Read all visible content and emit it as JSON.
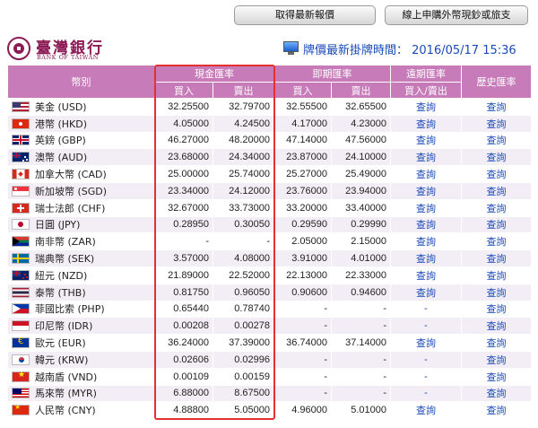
{
  "buttons": {
    "latest_rates": "取得最新報價",
    "online_purchase": "線上申購外幣現鈔或旅支"
  },
  "logo": {
    "name_cn": "臺灣銀行",
    "name_en": "BANK OF TAIWAN"
  },
  "update_time": "牌價最新掛牌時間： 2016/05/17 15:36",
  "table": {
    "headers": {
      "currency": "幣別",
      "cash": "現金匯率",
      "spot": "即期匯率",
      "forward": "遠期匯率",
      "history": "歷史匯率",
      "buy": "買入",
      "sell": "賣出",
      "buy_sell": "買入/賣出"
    },
    "query_label": "查詢",
    "rows": [
      {
        "flag": "us-flag-icon",
        "name": "美金 (USD)",
        "cash_buy": "32.25500",
        "cash_sell": "32.79700",
        "spot_buy": "32.55500",
        "spot_sell": "32.65500",
        "forward": "查詢",
        "history": "查詢"
      },
      {
        "flag": "hk-flag-icon",
        "name": "港幣 (HKD)",
        "cash_buy": "4.05000",
        "cash_sell": "4.24500",
        "spot_buy": "4.17000",
        "spot_sell": "4.23000",
        "forward": "查詢",
        "history": "查詢"
      },
      {
        "flag": "uk-flag-icon",
        "name": "英鎊 (GBP)",
        "cash_buy": "46.27000",
        "cash_sell": "48.20000",
        "spot_buy": "47.14000",
        "spot_sell": "47.56000",
        "forward": "查詢",
        "history": "查詢"
      },
      {
        "flag": "au-flag-icon",
        "name": "澳幣 (AUD)",
        "cash_buy": "23.68000",
        "cash_sell": "24.34000",
        "spot_buy": "23.87000",
        "spot_sell": "24.10000",
        "forward": "查詢",
        "history": "查詢"
      },
      {
        "flag": "ca-flag-icon",
        "name": "加拿大幣 (CAD)",
        "cash_buy": "25.00000",
        "cash_sell": "25.74000",
        "spot_buy": "25.27000",
        "spot_sell": "25.49000",
        "forward": "查詢",
        "history": "查詢"
      },
      {
        "flag": "sg-flag-icon",
        "name": "新加坡幣 (SGD)",
        "cash_buy": "23.34000",
        "cash_sell": "24.12000",
        "spot_buy": "23.76000",
        "spot_sell": "23.94000",
        "forward": "查詢",
        "history": "查詢"
      },
      {
        "flag": "ch-flag-icon",
        "name": "瑞士法郎 (CHF)",
        "cash_buy": "32.67000",
        "cash_sell": "33.73000",
        "spot_buy": "33.20000",
        "spot_sell": "33.40000",
        "forward": "查詢",
        "history": "查詢"
      },
      {
        "flag": "jp-flag-icon",
        "name": "日圓 (JPY)",
        "cash_buy": "0.28950",
        "cash_sell": "0.30050",
        "spot_buy": "0.29590",
        "spot_sell": "0.29990",
        "forward": "查詢",
        "history": "查詢"
      },
      {
        "flag": "za-flag-icon",
        "name": "南非幣 (ZAR)",
        "cash_buy": "-",
        "cash_sell": "-",
        "spot_buy": "2.05000",
        "spot_sell": "2.15000",
        "forward": "查詢",
        "history": "查詢"
      },
      {
        "flag": "se-flag-icon",
        "name": "瑞典幣 (SEK)",
        "cash_buy": "3.57000",
        "cash_sell": "4.08000",
        "spot_buy": "3.91000",
        "spot_sell": "4.01000",
        "forward": "查詢",
        "history": "查詢"
      },
      {
        "flag": "nz-flag-icon",
        "name": "紐元 (NZD)",
        "cash_buy": "21.89000",
        "cash_sell": "22.52000",
        "spot_buy": "22.13000",
        "spot_sell": "22.33000",
        "forward": "查詢",
        "history": "查詢"
      },
      {
        "flag": "th-flag-icon",
        "name": "泰幣 (THB)",
        "cash_buy": "0.81750",
        "cash_sell": "0.96050",
        "spot_buy": "0.90600",
        "spot_sell": "0.94600",
        "forward": "查詢",
        "history": "查詢"
      },
      {
        "flag": "ph-flag-icon",
        "name": "菲國比索 (PHP)",
        "cash_buy": "0.65440",
        "cash_sell": "0.78740",
        "spot_buy": "-",
        "spot_sell": "-",
        "forward": "-",
        "history": "查詢"
      },
      {
        "flag": "id-flag-icon",
        "name": "印尼幣 (IDR)",
        "cash_buy": "0.00208",
        "cash_sell": "0.00278",
        "spot_buy": "-",
        "spot_sell": "-",
        "forward": "-",
        "history": "查詢"
      },
      {
        "flag": "eu-flag-icon",
        "name": "歐元 (EUR)",
        "cash_buy": "36.24000",
        "cash_sell": "37.39000",
        "spot_buy": "36.74000",
        "spot_sell": "37.14000",
        "forward": "查詢",
        "history": "查詢"
      },
      {
        "flag": "kr-flag-icon",
        "name": "韓元 (KRW)",
        "cash_buy": "0.02606",
        "cash_sell": "0.02996",
        "spot_buy": "-",
        "spot_sell": "-",
        "forward": "-",
        "history": "查詢"
      },
      {
        "flag": "vn-flag-icon",
        "name": "越南盾 (VND)",
        "cash_buy": "0.00109",
        "cash_sell": "0.00159",
        "spot_buy": "-",
        "spot_sell": "-",
        "forward": "-",
        "history": "查詢"
      },
      {
        "flag": "my-flag-icon",
        "name": "馬來幣 (MYR)",
        "cash_buy": "6.88000",
        "cash_sell": "8.67500",
        "spot_buy": "-",
        "spot_sell": "-",
        "forward": "-",
        "history": "查詢"
      },
      {
        "flag": "cn-flag-icon",
        "name": "人民幣 (CNY)",
        "cash_buy": "4.88800",
        "cash_sell": "5.05000",
        "spot_buy": "4.96000",
        "spot_sell": "5.01000",
        "forward": "查詢",
        "history": "查詢"
      }
    ]
  },
  "colors": {
    "header_bg": "#c77bb8",
    "stripe": "#f3eef5",
    "link": "#1a4ab8",
    "highlight_border": "#e53030",
    "brand": "#8b1a55"
  }
}
